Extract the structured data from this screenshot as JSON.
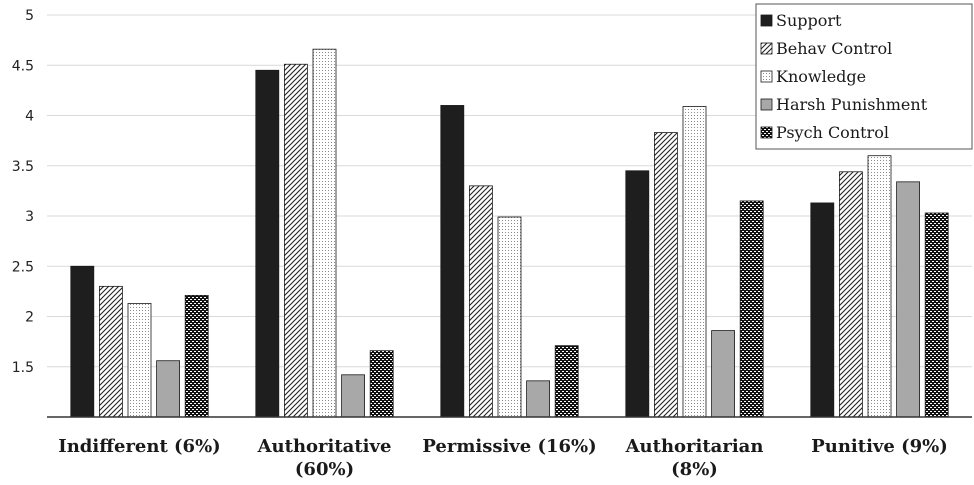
{
  "chart_data": {
    "type": "bar",
    "title": "",
    "xlabel": "",
    "ylabel": "",
    "ylim": [
      1,
      5
    ],
    "yticks": [
      1.5,
      2,
      2.5,
      3,
      3.5,
      4,
      4.5,
      5
    ],
    "ytick_labels": [
      "1.5",
      "2",
      "2.5",
      "3",
      "3.5",
      "4",
      "4.5",
      "5"
    ],
    "grid": true,
    "legend_position": "top-right",
    "categories": [
      [
        "Indifferent (6%)"
      ],
      [
        "Authoritative",
        "(60%)"
      ],
      [
        "Permissive (16%)"
      ],
      [
        "Authoritarian",
        "(8%)"
      ],
      [
        "Punitive (9%)"
      ]
    ],
    "series": [
      {
        "name": "Support",
        "pattern": "solid-black",
        "values": [
          2.5,
          4.45,
          4.1,
          3.45,
          3.13
        ]
      },
      {
        "name": "Behav Control",
        "pattern": "diagonal-hatch",
        "values": [
          2.3,
          4.51,
          3.3,
          3.83,
          3.44
        ]
      },
      {
        "name": "Knowledge",
        "pattern": "light-dotted",
        "values": [
          2.13,
          4.66,
          2.99,
          4.09,
          3.6
        ]
      },
      {
        "name": "Harsh Punishment",
        "pattern": "solid-gray",
        "values": [
          1.56,
          1.42,
          1.36,
          1.86,
          3.34
        ]
      },
      {
        "name": "Psych Control",
        "pattern": "dark-dotted",
        "values": [
          2.21,
          1.66,
          1.71,
          3.15,
          3.03
        ]
      }
    ],
    "colors": {
      "support": "#1e1e1e",
      "harsh_punishment": "#a8a8a8",
      "gridline": "#d9d9d9",
      "axis": "#333333"
    }
  }
}
